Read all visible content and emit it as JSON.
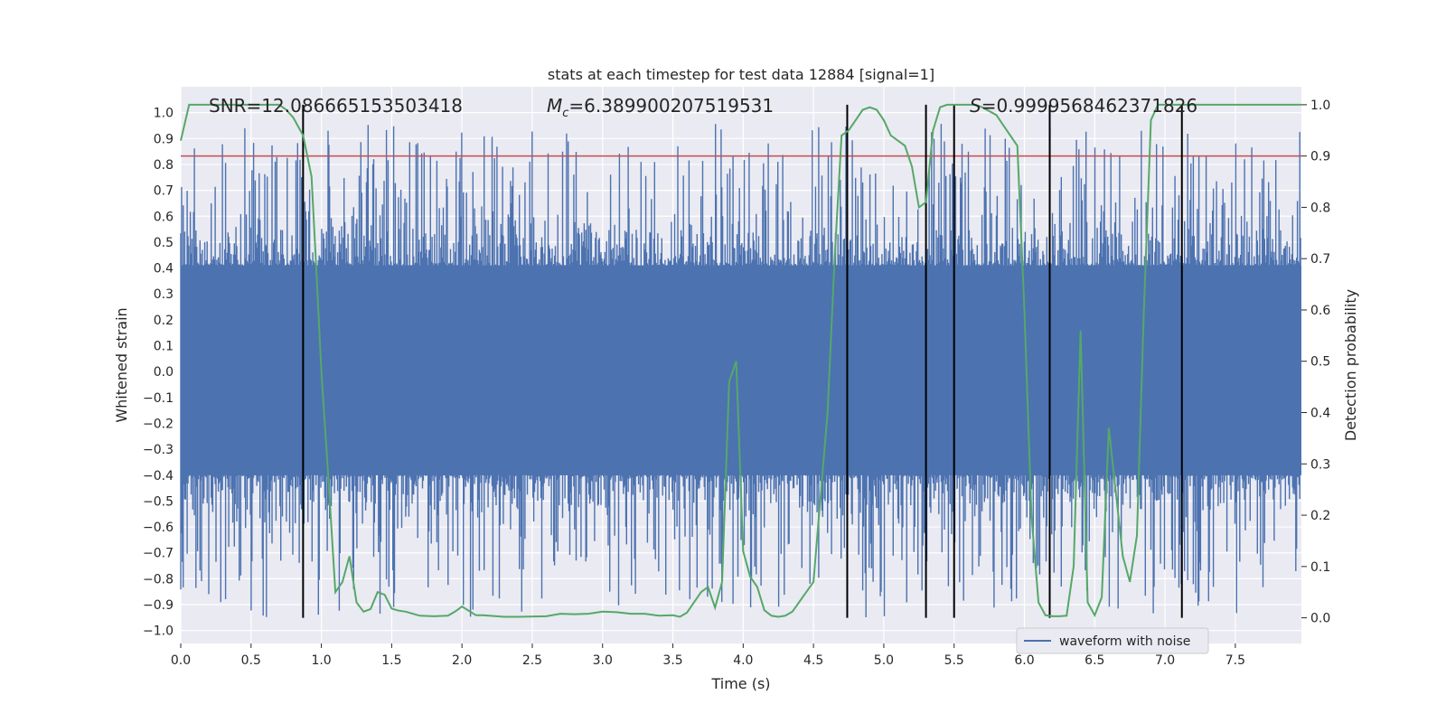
{
  "chart_data": {
    "type": "line",
    "title": "stats at each timestep for test data 12884 [signal=1]",
    "xlabel": "Time (s)",
    "ylabel": "Whitened strain",
    "y2label": "Detection probability",
    "xlim": [
      0.0,
      7.97
    ],
    "ylim": [
      -1.05,
      1.1
    ],
    "y2lim": [
      -0.05,
      1.035
    ],
    "grid": true,
    "xticks": [
      "0.0",
      "0.5",
      "1.0",
      "1.5",
      "2.0",
      "2.5",
      "3.0",
      "3.5",
      "4.0",
      "4.5",
      "5.0",
      "5.5",
      "6.0",
      "6.5",
      "7.0",
      "7.5"
    ],
    "xtick_values": [
      0.0,
      0.5,
      1.0,
      1.5,
      2.0,
      2.5,
      3.0,
      3.5,
      4.0,
      4.5,
      5.0,
      5.5,
      6.0,
      6.5,
      7.0,
      7.5
    ],
    "yticks": [
      "1.0",
      "0.9",
      "0.8",
      "0.7",
      "0.6",
      "0.5",
      "0.4",
      "0.3",
      "0.2",
      "0.1",
      "0.0",
      "−0.1",
      "−0.2",
      "−0.3",
      "−0.4",
      "−0.5",
      "−0.6",
      "−0.7",
      "−0.8",
      "−0.9",
      "−1.0"
    ],
    "ytick_values": [
      1.0,
      0.9,
      0.8,
      0.7,
      0.6,
      0.5,
      0.4,
      0.3,
      0.2,
      0.1,
      0.0,
      -0.1,
      -0.2,
      -0.3,
      -0.4,
      -0.5,
      -0.6,
      -0.7,
      -0.8,
      -0.9,
      -1.0
    ],
    "y2ticks": [
      "1.0",
      "0.9",
      "0.8",
      "0.7",
      "0.6",
      "0.5",
      "0.4",
      "0.3",
      "0.2",
      "0.1",
      "0.0"
    ],
    "y2tick_values": [
      1.0,
      0.9,
      0.8,
      0.7,
      0.6,
      0.5,
      0.4,
      0.3,
      0.2,
      0.1,
      0.0
    ],
    "annotations": {
      "snr": "SNR=12.086665153503418",
      "mc_symbol": "M",
      "mc_sub": "c",
      "mc_value": "=6.389900207519531",
      "s_symbol": "S",
      "s_value": "=0.9999568462371826"
    },
    "series": [
      {
        "name": "waveform with noise",
        "axis": "left",
        "color": "#4c72b0",
        "description": "dense noisy whitened strain, core band approx ±0.4, spikes to ±1.0",
        "core_band": [
          -0.4,
          0.41
        ]
      },
      {
        "name": "detection probability",
        "axis": "right",
        "color": "#55a868",
        "x": [
          0.0,
          0.06,
          0.12,
          0.2,
          0.3,
          0.4,
          0.5,
          0.6,
          0.7,
          0.75,
          0.8,
          0.87,
          0.93,
          0.96,
          1.0,
          1.05,
          1.1,
          1.15,
          1.2,
          1.25,
          1.3,
          1.35,
          1.4,
          1.45,
          1.5,
          1.55,
          1.6,
          1.7,
          1.8,
          1.9,
          1.95,
          2.0,
          2.1,
          2.15,
          2.3,
          2.4,
          2.6,
          2.7,
          2.8,
          2.9,
          3.0,
          3.1,
          3.2,
          3.3,
          3.4,
          3.5,
          3.55,
          3.6,
          3.7,
          3.75,
          3.8,
          3.85,
          3.9,
          3.95,
          4.0,
          4.05,
          4.1,
          4.15,
          4.2,
          4.25,
          4.3,
          4.35,
          4.5,
          4.6,
          4.65,
          4.7,
          4.75,
          4.8,
          4.85,
          4.9,
          4.95,
          5.0,
          5.05,
          5.1,
          5.15,
          5.2,
          5.25,
          5.3,
          5.35,
          5.4,
          5.45,
          5.5,
          5.55,
          5.6,
          5.65,
          5.7,
          5.8,
          5.9,
          5.95,
          6.0,
          6.05,
          6.1,
          6.15,
          6.2,
          6.25,
          6.3,
          6.35,
          6.4,
          6.45,
          6.5,
          6.55,
          6.6,
          6.7,
          6.75,
          6.8,
          6.85,
          6.9,
          6.95,
          7.0,
          7.05,
          7.08,
          7.1,
          7.15,
          7.2,
          7.25,
          7.3,
          7.5,
          7.7,
          7.9,
          7.97
        ],
        "values": [
          0.93,
          1.0,
          1.0,
          1.0,
          1.0,
          1.0,
          1.0,
          1.0,
          1.0,
          0.99,
          0.975,
          0.94,
          0.86,
          0.7,
          0.48,
          0.27,
          0.05,
          0.07,
          0.12,
          0.03,
          0.012,
          0.017,
          0.05,
          0.045,
          0.018,
          0.014,
          0.012,
          0.004,
          0.003,
          0.004,
          0.012,
          0.022,
          0.005,
          0.005,
          0.002,
          0.002,
          0.003,
          0.008,
          0.007,
          0.008,
          0.012,
          0.011,
          0.008,
          0.008,
          0.004,
          0.005,
          0.002,
          0.01,
          0.05,
          0.06,
          0.02,
          0.07,
          0.46,
          0.5,
          0.13,
          0.08,
          0.06,
          0.015,
          0.004,
          0.002,
          0.004,
          0.012,
          0.07,
          0.4,
          0.7,
          0.94,
          0.95,
          0.97,
          0.99,
          0.995,
          0.99,
          0.97,
          0.94,
          0.93,
          0.92,
          0.88,
          0.8,
          0.81,
          0.95,
          0.995,
          1.0,
          1.0,
          1.0,
          1.0,
          1.0,
          0.995,
          0.98,
          0.94,
          0.92,
          0.6,
          0.2,
          0.03,
          0.005,
          0.003,
          0.003,
          0.004,
          0.1,
          0.56,
          0.03,
          0.005,
          0.04,
          0.37,
          0.12,
          0.07,
          0.16,
          0.6,
          0.97,
          1.0,
          1.0,
          1.0,
          1.0,
          1.0,
          1.0,
          1.0,
          1.0,
          1.0,
          1.0,
          1.0,
          1.0,
          1.0
        ]
      }
    ],
    "threshold": {
      "value": 0.9,
      "axis": "right",
      "color": "#c44e52"
    },
    "vlines": [
      0.87,
      4.74,
      5.3,
      5.5,
      6.18,
      7.12
    ],
    "legend": {
      "label": "waveform with noise",
      "placement": "lower-right"
    }
  }
}
